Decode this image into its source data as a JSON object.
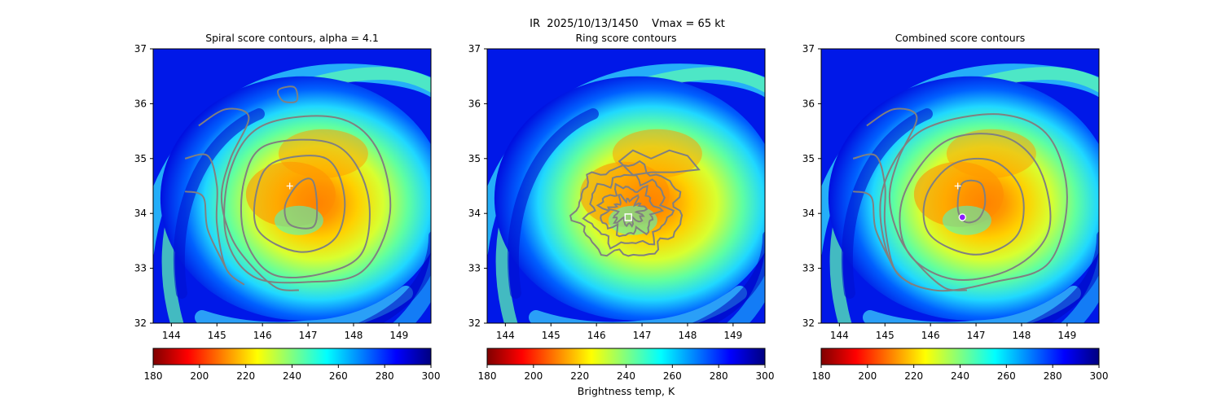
{
  "suptitle": "IR  2025/10/13/1450    Vmax = 65 kt",
  "colorbar": {
    "label": "Brightness temp, K",
    "range": [
      180,
      300
    ],
    "ticks": [
      180,
      200,
      220,
      240,
      260,
      280,
      300
    ],
    "colormap": "jet_r",
    "stops": [
      "#800000",
      "#ff0000",
      "#ff8000",
      "#ffff00",
      "#80ff80",
      "#00ffff",
      "#0080ff",
      "#0000ff",
      "#000080"
    ]
  },
  "colors": {
    "contour": "#808080",
    "marker_plus": "#ffffff",
    "marker_square": "#ffffff",
    "marker_circle_fill": "#8c1cff",
    "marker_circle_edge": "#ffffff"
  },
  "chart_data": [
    {
      "type": "heatmap",
      "title": "Spiral score contours, alpha =  4.1",
      "xlim": [
        143.6,
        149.7
      ],
      "ylim": [
        32,
        37
      ],
      "xticks": [
        144,
        145,
        146,
        147,
        148,
        149
      ],
      "yticks": [
        32,
        33,
        34,
        35,
        36,
        37
      ],
      "contours": "spiral",
      "markers": [
        {
          "shape": "plus",
          "x": 146.6,
          "y": 34.5
        }
      ]
    },
    {
      "type": "heatmap",
      "title": "Ring score contours",
      "xlim": [
        143.6,
        149.7
      ],
      "ylim": [
        32,
        37
      ],
      "xticks": [
        144,
        145,
        146,
        147,
        148,
        149
      ],
      "yticks": [
        32,
        33,
        34,
        35,
        36,
        37
      ],
      "contours": "ring",
      "markers": [
        {
          "shape": "square",
          "x": 146.7,
          "y": 33.93
        }
      ]
    },
    {
      "type": "heatmap",
      "title": "Combined score contours",
      "xlim": [
        143.6,
        149.7
      ],
      "ylim": [
        32,
        37
      ],
      "xticks": [
        144,
        145,
        146,
        147,
        148,
        149
      ],
      "yticks": [
        32,
        33,
        34,
        35,
        36,
        37
      ],
      "contours": "combined",
      "markers": [
        {
          "shape": "plus",
          "x": 146.6,
          "y": 34.5
        },
        {
          "shape": "circle",
          "x": 146.7,
          "y": 33.93
        }
      ]
    }
  ]
}
